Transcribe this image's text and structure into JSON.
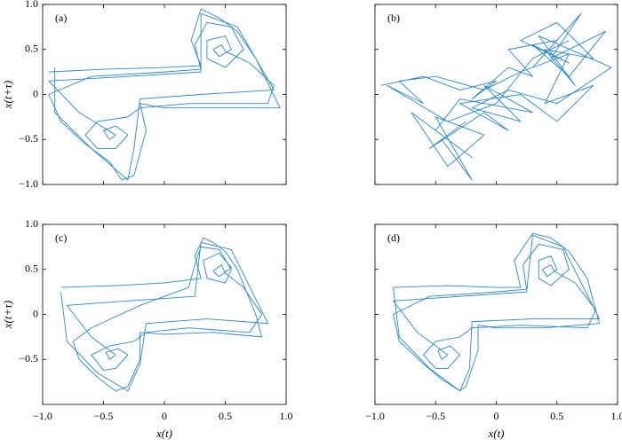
{
  "chart_data": [
    {
      "type": "line",
      "panel_label": "(a)",
      "ylabel": "x(t+τ)",
      "xlim": [
        -1,
        1
      ],
      "ylim": [
        -1,
        1
      ],
      "xticks": [
        -1,
        -0.5,
        0,
        0.5,
        1
      ],
      "xtick_labels": false,
      "yticks": [
        {
          "value": 1,
          "label": "1.0"
        },
        {
          "value": 0.5,
          "label": "0.5"
        },
        0,
        {
          "value": -0.5,
          "label": "−0.5"
        },
        {
          "value": -1,
          "label": "−1.0"
        }
      ],
      "series": [
        {
          "color": "#2a87c8",
          "x": [
            -0.95,
            -0.5,
            0,
            0.3,
            0.22,
            0.3,
            0.45,
            0.6,
            0.75,
            0.95,
            0.5,
            0,
            -0.2,
            -0.15,
            -0.25,
            -0.35,
            -0.45,
            -0.65,
            -0.85,
            -0.95,
            -0.6,
            0,
            0.3,
            0.25,
            0.35,
            0.55,
            0.65,
            0.5,
            0.35,
            0.35,
            0.5,
            0.55,
            0.45,
            0.4,
            0.47,
            0.5,
            0.7,
            0.9,
            0.85,
            0.2,
            -0.2,
            -0.3,
            -0.55,
            -0.65,
            -0.55,
            -0.4,
            -0.3,
            -0.4,
            -0.5,
            -0.45,
            -0.4,
            -0.7,
            -0.95,
            -0.3,
            0.3,
            0.3,
            0.6,
            0.9,
            0.3,
            -0.2,
            -0.25,
            -0.3,
            -0.6,
            -0.9,
            -0.9
          ],
          "values": [
            0.25,
            0.28,
            0.3,
            0.32,
            0.6,
            0.95,
            0.85,
            0.7,
            0.4,
            -0.15,
            -0.15,
            -0.15,
            -0.1,
            -0.4,
            -0.9,
            -0.95,
            -0.75,
            -0.55,
            -0.3,
            0.0,
            0.2,
            0.25,
            0.28,
            0.55,
            0.8,
            0.75,
            0.5,
            0.3,
            0.4,
            0.6,
            0.65,
            0.5,
            0.42,
            0.5,
            0.55,
            0.48,
            0.35,
            0.1,
            -0.1,
            -0.1,
            -0.15,
            -0.25,
            -0.3,
            -0.45,
            -0.6,
            -0.6,
            -0.45,
            -0.35,
            -0.4,
            -0.5,
            -0.45,
            -0.2,
            0.15,
            0.2,
            0.25,
            0.9,
            0.75,
            0.05,
            0.0,
            -0.05,
            -0.6,
            -0.95,
            -0.6,
            -0.2,
            0.3
          ]
        }
      ]
    },
    {
      "type": "line",
      "panel_label": "(b)",
      "xlim": [
        -1,
        1
      ],
      "ylim": [
        -1,
        1
      ],
      "xticks": [
        -1,
        -0.5,
        0,
        0.5,
        1
      ],
      "xtick_labels": false,
      "yticks": [
        -1,
        -0.5,
        0,
        0.5,
        1
      ],
      "ytick_labels": false,
      "series": [
        {
          "color": "#2a87c8",
          "x": [
            -0.95,
            -0.6,
            -0.3,
            0.0,
            -0.2,
            0.1,
            0.3,
            0.1,
            0.5,
            0.3,
            0.7,
            0.45,
            0.9,
            0.6,
            0.3,
            0.6,
            0.2,
            0.5,
            0.8,
            0.4,
            0.65,
            0.35,
            0.95,
            0.5,
            0.1,
            -0.2,
            0.2,
            -0.1,
            0.3,
            -0.3,
            -0.5,
            -0.2,
            -0.6,
            -0.3,
            -0.7,
            -0.4,
            -0.1,
            -0.5,
            -0.2,
            -0.45,
            -0.25,
            -0.55,
            -0.1,
            0.1,
            -0.3,
            0.2,
            0.5,
            0.8,
            0.4,
            0.6,
            0.2,
            -0.1,
            -0.5,
            -0.8,
            -0.6,
            -0.9,
            -0.4,
            0.0,
            0.3,
            0.6
          ],
          "values": [
            0.1,
            0.2,
            0.05,
            0.15,
            -0.05,
            0.3,
            0.2,
            0.5,
            0.6,
            0.3,
            0.9,
            0.4,
            0.7,
            0.2,
            0.55,
            0.35,
            0.6,
            0.8,
            0.4,
            0.5,
            0.1,
            0.65,
            0.3,
            -0.1,
            0.05,
            -0.15,
            -0.3,
            0.1,
            -0.2,
            -0.05,
            -0.4,
            -0.7,
            -0.3,
            -0.6,
            -0.2,
            -0.8,
            -0.45,
            -0.25,
            -0.95,
            -0.5,
            -0.3,
            -0.6,
            -0.2,
            -0.4,
            -0.1,
            0.0,
            -0.3,
            0.1,
            -0.1,
            0.45,
            0.25,
            0.05,
            0.2,
            0.15,
            -0.1,
            0.1,
            -0.3,
            -0.1,
            0.4,
            0.6
          ]
        }
      ]
    },
    {
      "type": "line",
      "panel_label": "(c)",
      "xlabel": "x(t)",
      "ylabel": "x(t+τ)",
      "xlim": [
        -1,
        1
      ],
      "ylim": [
        -1,
        1
      ],
      "xticks": [
        {
          "value": -1,
          "label": "−1.0"
        },
        {
          "value": -0.5,
          "label": "−0.5"
        },
        0,
        {
          "value": 0.5,
          "label": "0.5"
        },
        {
          "value": 1,
          "label": "1.0"
        }
      ],
      "yticks": [
        {
          "value": 1,
          "label": "1.0"
        },
        {
          "value": 0.5,
          "label": "0.5"
        },
        0,
        {
          "value": -0.5,
          "label": "−0.5"
        }
      ],
      "series": [
        {
          "color": "#2a87c8",
          "x": [
            -0.85,
            -0.4,
            0,
            0.3,
            0.25,
            0.32,
            0.4,
            0.5,
            0.6,
            0.75,
            0.8,
            0.4,
            0,
            -0.2,
            -0.2,
            -0.3,
            -0.4,
            -0.55,
            -0.7,
            -0.75,
            -0.6,
            -0.2,
            0.2,
            0.25,
            0.3,
            0.45,
            0.55,
            0.5,
            0.35,
            0.32,
            0.45,
            0.55,
            0.45,
            0.4,
            0.47,
            0.5,
            0.65,
            0.8,
            0.7,
            0.2,
            -0.15,
            -0.25,
            -0.45,
            -0.6,
            -0.5,
            -0.4,
            -0.3,
            -0.38,
            -0.48,
            -0.45,
            -0.4,
            -0.6,
            -0.8,
            -0.3,
            0.25,
            0.3,
            0.55,
            0.85,
            0.35,
            -0.15,
            -0.2,
            -0.3,
            -0.55,
            -0.8,
            -0.85
          ],
          "values": [
            0.3,
            0.32,
            0.35,
            0.4,
            0.65,
            0.85,
            0.8,
            0.7,
            0.5,
            0.0,
            -0.25,
            -0.2,
            -0.22,
            -0.2,
            -0.5,
            -0.8,
            -0.85,
            -0.7,
            -0.5,
            -0.3,
            -0.15,
            0.1,
            0.3,
            0.55,
            0.75,
            0.72,
            0.5,
            0.35,
            0.4,
            0.6,
            0.68,
            0.52,
            0.42,
            0.48,
            0.55,
            0.46,
            0.3,
            0.0,
            -0.2,
            -0.15,
            -0.2,
            -0.3,
            -0.35,
            -0.45,
            -0.62,
            -0.6,
            -0.45,
            -0.38,
            -0.42,
            -0.5,
            -0.45,
            -0.25,
            0.1,
            0.15,
            0.2,
            0.8,
            0.72,
            -0.1,
            -0.05,
            -0.1,
            -0.55,
            -0.85,
            -0.65,
            -0.3,
            0.25
          ]
        }
      ]
    },
    {
      "type": "line",
      "panel_label": "(d)",
      "xlabel": "x(t)",
      "xlim": [
        -1,
        1
      ],
      "ylim": [
        -1,
        1
      ],
      "xticks": [
        {
          "value": -1,
          "label": "−1.0"
        },
        {
          "value": -0.5,
          "label": "−0.5"
        },
        0,
        {
          "value": 0.5,
          "label": "0.5"
        },
        {
          "value": 1,
          "label": "1.0"
        }
      ],
      "yticks": [
        -1,
        -0.5,
        0,
        0.5,
        1
      ],
      "ytick_labels": false,
      "series": [
        {
          "color": "#2a87c8",
          "x": [
            -0.85,
            -0.4,
            0,
            0.2,
            0.15,
            0.3,
            0.45,
            0.6,
            0.75,
            0.85,
            0.4,
            0,
            -0.15,
            -0.15,
            -0.25,
            -0.3,
            -0.45,
            -0.6,
            -0.8,
            -0.85,
            -0.55,
            0,
            0.25,
            0.22,
            0.35,
            0.55,
            0.6,
            0.45,
            0.35,
            0.35,
            0.45,
            0.5,
            0.42,
            0.38,
            0.45,
            0.48,
            0.65,
            0.82,
            0.75,
            0.2,
            -0.2,
            -0.3,
            -0.5,
            -0.6,
            -0.5,
            -0.4,
            -0.3,
            -0.38,
            -0.48,
            -0.45,
            -0.4,
            -0.65,
            -0.85,
            -0.3,
            0.25,
            0.3,
            0.55,
            0.85,
            0.3,
            -0.2,
            -0.22,
            -0.3,
            -0.55,
            -0.8,
            -0.85
          ],
          "values": [
            0.3,
            0.32,
            0.3,
            0.3,
            0.6,
            0.9,
            0.85,
            0.7,
            0.4,
            -0.1,
            -0.15,
            -0.15,
            -0.12,
            -0.4,
            -0.8,
            -0.85,
            -0.72,
            -0.55,
            -0.3,
            0.0,
            0.2,
            0.25,
            0.28,
            0.55,
            0.78,
            0.72,
            0.5,
            0.32,
            0.4,
            0.6,
            0.65,
            0.5,
            0.42,
            0.5,
            0.55,
            0.48,
            0.35,
            0.05,
            -0.15,
            -0.12,
            -0.15,
            -0.25,
            -0.3,
            -0.45,
            -0.6,
            -0.6,
            -0.45,
            -0.35,
            -0.4,
            -0.5,
            -0.45,
            -0.2,
            0.15,
            0.2,
            0.25,
            0.88,
            0.75,
            -0.05,
            -0.05,
            -0.08,
            -0.6,
            -0.85,
            -0.6,
            -0.25,
            0.3
          ]
        }
      ]
    }
  ]
}
